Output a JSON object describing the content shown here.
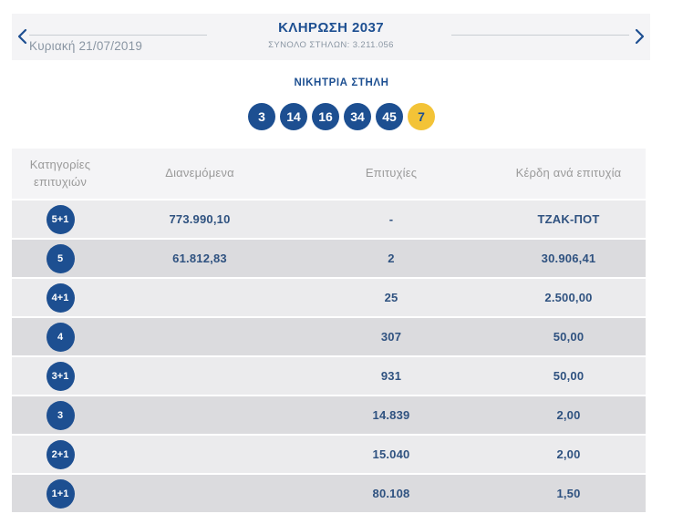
{
  "draw_header": {
    "title": "ΚΛΗΡΩΣΗ 2037",
    "total_columns": "ΣΥΝΟΛΟ ΣΤΗΛΩΝ: 3.211.056",
    "date": "Κυριακή 21/07/2019"
  },
  "winning_column": {
    "label": "ΝΙΚΗΤΡΙΑ ΣΤΗΛΗ",
    "numbers": [
      "3",
      "14",
      "16",
      "34",
      "45"
    ],
    "joker": "7"
  },
  "results_table": {
    "columns": [
      "Κατηγορίες επιτυχιών",
      "Διανεμόμενα",
      "Επιτυχίες",
      "Κέρδη ανά επιτυχία"
    ],
    "rows": [
      {
        "category": "5+1",
        "distributed": "773.990,10",
        "winners": "-",
        "prize": "ΤΖΑΚ-ΠΟΤ"
      },
      {
        "category": "5",
        "distributed": "61.812,83",
        "winners": "2",
        "prize": "30.906,41"
      },
      {
        "category": "4+1",
        "distributed": "",
        "winners": "25",
        "prize": "2.500,00"
      },
      {
        "category": "4",
        "distributed": "",
        "winners": "307",
        "prize": "50,00"
      },
      {
        "category": "3+1",
        "distributed": "",
        "winners": "931",
        "prize": "50,00"
      },
      {
        "category": "3",
        "distributed": "",
        "winners": "14.839",
        "prize": "2,00"
      },
      {
        "category": "2+1",
        "distributed": "",
        "winners": "15.040",
        "prize": "2,00"
      },
      {
        "category": "1+1",
        "distributed": "",
        "winners": "80.108",
        "prize": "1,50"
      }
    ]
  },
  "colors": {
    "primary_blue": "#1d4f91",
    "joker_yellow": "#f3c337",
    "band_gray": "#f4f4f6",
    "row_light": "#ebebed",
    "row_dark": "#dbdbde"
  }
}
